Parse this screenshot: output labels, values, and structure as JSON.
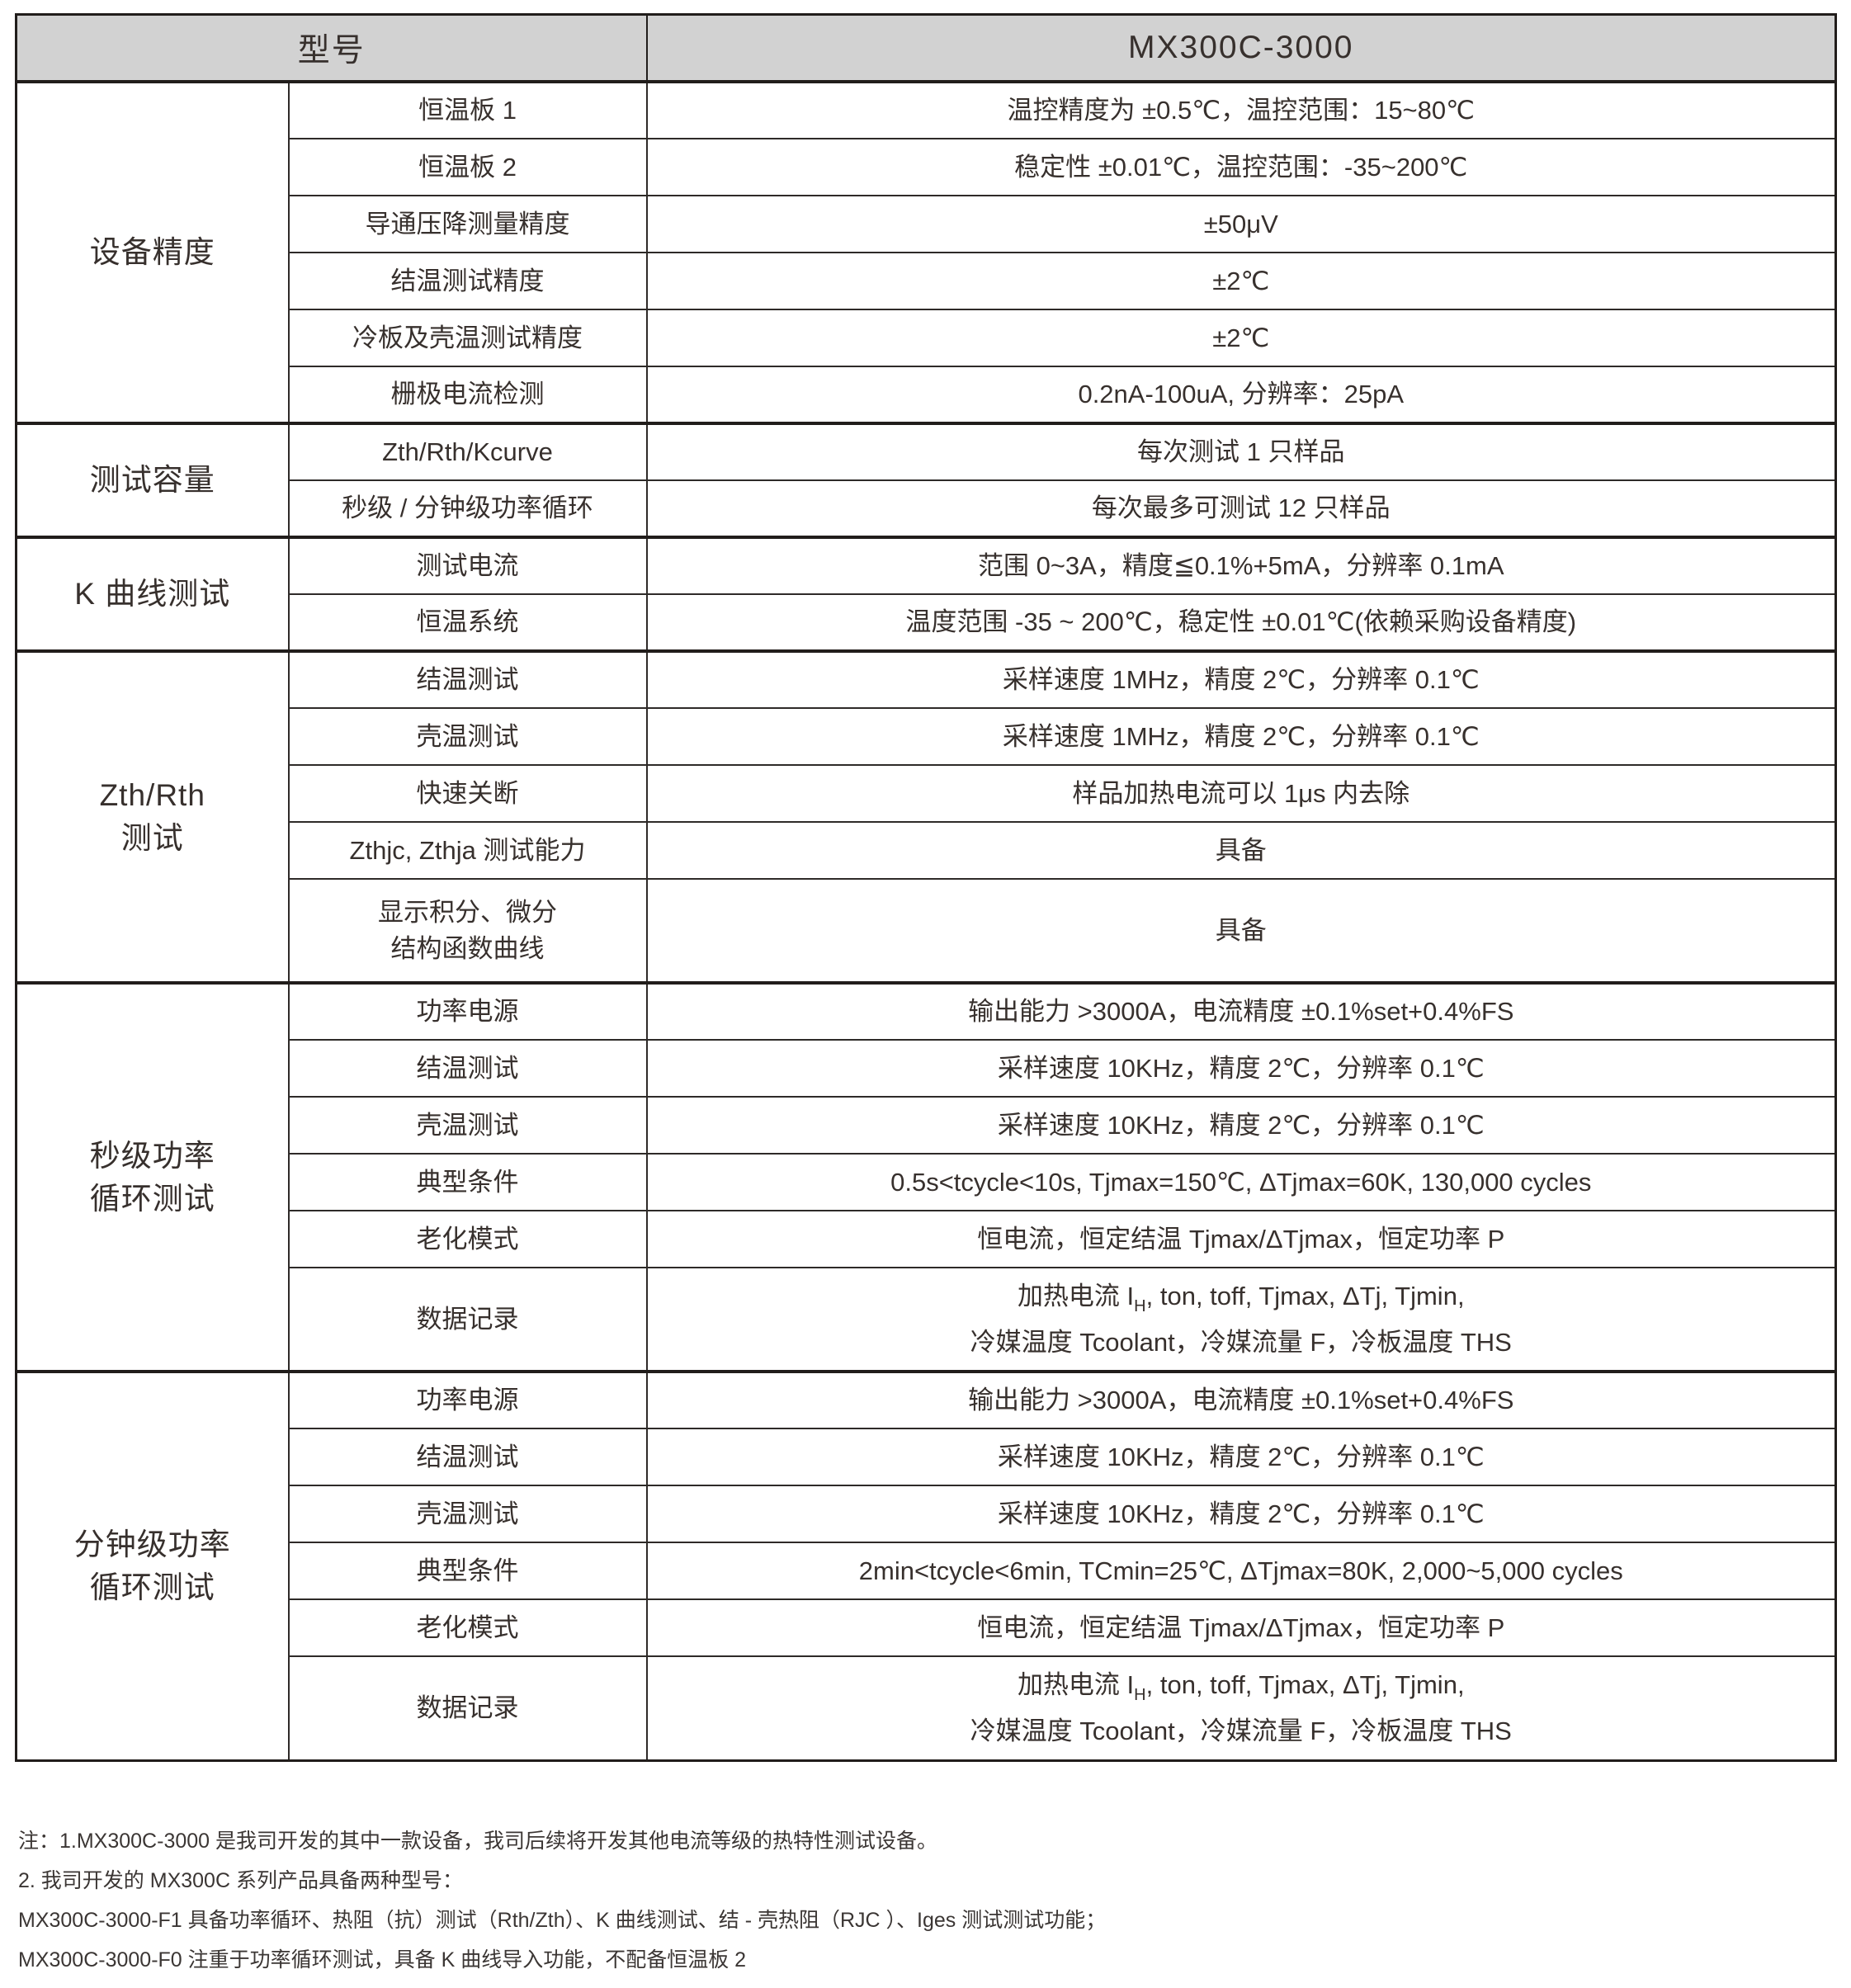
{
  "header": {
    "model_label": "型号",
    "model_value": "MX300C-3000"
  },
  "sections": [
    {
      "group": "设备精度",
      "rows": [
        {
          "label": "恒温板 1",
          "value": "温控精度为 ±0.5℃，温控范围：15~80℃"
        },
        {
          "label": "恒温板 2",
          "value": "稳定性 ±0.01℃，温控范围：-35~200℃"
        },
        {
          "label": "导通压降测量精度",
          "value": "±50μV"
        },
        {
          "label": "结温测试精度",
          "value": "±2℃"
        },
        {
          "label": "冷板及壳温测试精度",
          "value": "±2℃"
        },
        {
          "label": "栅极电流检测",
          "value": "0.2nA-100uA, 分辨率：25pA"
        }
      ]
    },
    {
      "group": "测试容量",
      "rows": [
        {
          "label": "Zth/Rth/Kcurve",
          "value": "每次测试 1 只样品"
        },
        {
          "label": "秒级 / 分钟级功率循环",
          "value": "每次最多可测试 12 只样品"
        }
      ]
    },
    {
      "group": "K 曲线测试",
      "rows": [
        {
          "label": "测试电流",
          "value": "范围 0~3A，精度≦0.1%+5mA，分辨率 0.1mA"
        },
        {
          "label": "恒温系统",
          "value": "温度范围 -35 ~ 200℃，稳定性 ±0.01℃(依赖采购设备精度)"
        }
      ]
    },
    {
      "group_line1": "Zth/Rth",
      "group_line2": "测试",
      "rows": [
        {
          "label": "结温测试",
          "value": "采样速度 1MHz，精度 2℃，分辨率 0.1℃"
        },
        {
          "label": "壳温测试",
          "value": "采样速度 1MHz，精度 2℃，分辨率 0.1℃"
        },
        {
          "label": "快速关断",
          "value": "样品加热电流可以 1μs 内去除"
        },
        {
          "label": "Zthjc, Zthja 测试能力",
          "value": "具备"
        },
        {
          "label_line1": "显示积分、微分",
          "label_line2": "结构函数曲线",
          "value": "具备"
        }
      ]
    },
    {
      "group_line1": "秒级功率",
      "group_line2": "循环测试",
      "rows": [
        {
          "label": "功率电源",
          "value": "输出能力 >3000A，电流精度 ±0.1%set+0.4%FS"
        },
        {
          "label": "结温测试",
          "value": "采样速度 10KHz，精度 2℃，分辨率 0.1℃"
        },
        {
          "label": "壳温测试",
          "value": "采样速度 10KHz，精度 2℃，分辨率 0.1℃"
        },
        {
          "label": "典型条件",
          "value": "0.5s<tcycle<10s, Tjmax=150℃, ΔTjmax=60K, 130,000 cycles"
        },
        {
          "label": "老化模式",
          "value": "恒电流，恒定结温 Tjmax/ΔTjmax，恒定功率 P"
        },
        {
          "label": "数据记录",
          "value_line1_pre": "加热电流 I",
          "value_line1_sub": "H",
          "value_line1_post": ", ton, toff, Tjmax, ΔTj, Tjmin,",
          "value_line2": "冷媒温度 Tcoolant，冷媒流量 F，冷板温度 THS"
        }
      ]
    },
    {
      "group_line1": "分钟级功率",
      "group_line2": "循环测试",
      "rows": [
        {
          "label": "功率电源",
          "value": "输出能力 >3000A，电流精度 ±0.1%set+0.4%FS"
        },
        {
          "label": "结温测试",
          "value": "采样速度 10KHz，精度 2℃，分辨率 0.1℃"
        },
        {
          "label": "壳温测试",
          "value": "采样速度 10KHz，精度 2℃，分辨率 0.1℃"
        },
        {
          "label": "典型条件",
          "value": "2min<tcycle<6min, TCmin=25℃, ΔTjmax=80K, 2,000~5,000 cycles"
        },
        {
          "label": "老化模式",
          "value": "恒电流，恒定结温 Tjmax/ΔTjmax，恒定功率 P"
        },
        {
          "label": "数据记录",
          "value_line1_pre": "加热电流 I",
          "value_line1_sub": "H",
          "value_line1_post": ", ton, toff, Tjmax, ΔTj, Tjmin,",
          "value_line2": "冷媒温度 Tcoolant，冷媒流量 F，冷板温度 THS"
        }
      ]
    }
  ],
  "notes": {
    "line1": "注：1.MX300C-3000 是我司开发的其中一款设备，我司后续将开发其他电流等级的热特性测试设备。",
    "line2": "2. 我司开发的 MX300C 系列产品具备两种型号：",
    "line3": "MX300C-3000-F1 具备功率循环、热阻（抗）测试（Rth/Zth）、K 曲线测试、结 - 壳热阻（RJC ）、Iges 测试测试功能；",
    "line4": "MX300C-3000-F0 注重于功率循环测试，具备 K 曲线导入功能，不配备恒温板 2"
  },
  "colors": {
    "header_bg": "#d2d2d2",
    "border_dark": "#211d1b",
    "border_thin": "#2e2a28",
    "text": "#37302d"
  }
}
